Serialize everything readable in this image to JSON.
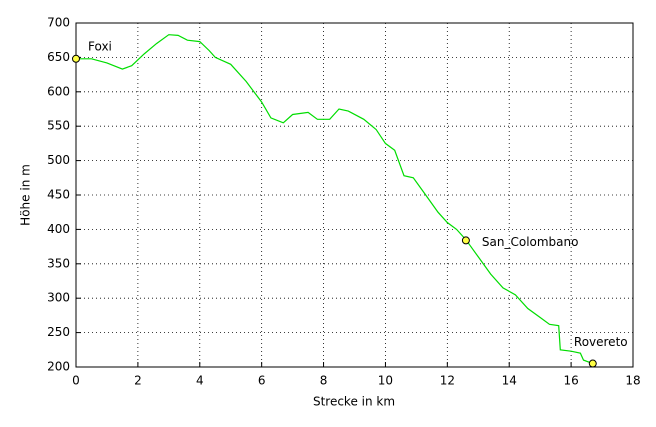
{
  "chart_data": {
    "type": "line",
    "xlabel": "Strecke in km",
    "ylabel": "Höhe in m",
    "x": [
      0,
      0.5,
      1.0,
      1.5,
      1.8,
      2.2,
      2.6,
      3.0,
      3.3,
      3.6,
      4.0,
      4.3,
      4.5,
      5.0,
      5.5,
      6.0,
      6.3,
      6.7,
      7.0,
      7.5,
      7.8,
      8.2,
      8.5,
      8.8,
      9.3,
      9.7,
      10.0,
      10.3,
      10.6,
      10.9,
      11.3,
      11.7,
      12.0,
      12.3,
      12.6,
      13.0,
      13.4,
      13.8,
      14.2,
      14.6,
      15.0,
      15.3,
      15.6,
      15.65,
      16.0,
      16.3,
      16.4,
      16.7
    ],
    "series": [
      {
        "color": "#00dd00",
        "values": [
          648,
          648,
          642,
          633,
          638,
          655,
          670,
          683,
          682,
          675,
          673,
          660,
          650,
          640,
          615,
          585,
          562,
          555,
          567,
          570,
          560,
          560,
          575,
          572,
          560,
          545,
          525,
          515,
          478,
          475,
          450,
          425,
          410,
          400,
          385,
          360,
          335,
          315,
          305,
          285,
          272,
          262,
          260,
          225,
          223,
          220,
          210,
          205
        ]
      }
    ],
    "points": [
      {
        "name": "Foxi",
        "x": 0,
        "y": 648
      },
      {
        "name": "San_Colombano",
        "x": 12.6,
        "y": 384
      },
      {
        "name": "Rovereto",
        "x": 16.7,
        "y": 205
      }
    ],
    "point_color": "#ffff44",
    "xlim": [
      0,
      18
    ],
    "xticks": [
      0,
      2,
      4,
      6,
      8,
      10,
      12,
      14,
      16,
      18
    ],
    "ylim": [
      200,
      700
    ],
    "yticks": [
      200,
      250,
      300,
      350,
      400,
      450,
      500,
      550,
      600,
      650,
      700
    ],
    "grid": true
  }
}
